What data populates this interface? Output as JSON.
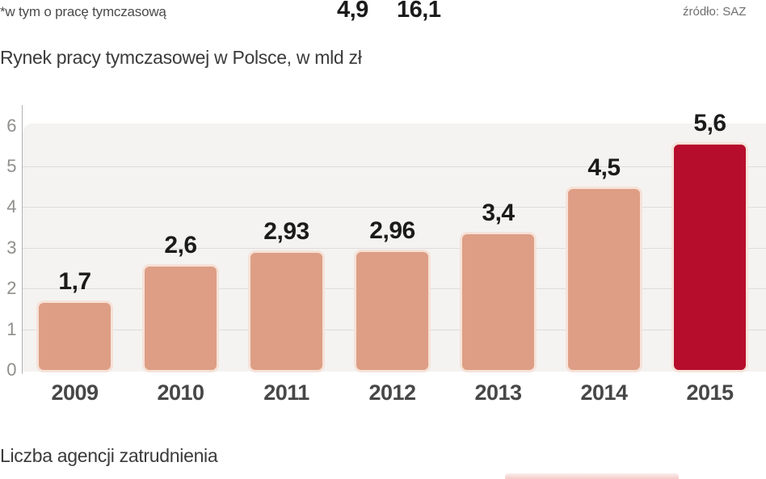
{
  "top": {
    "note": "*w tym o pracę tymczasową",
    "values": [
      "4,9",
      "16,1"
    ],
    "source": "źródło: SAZ"
  },
  "bottom_title": "Liczba agencji zatrudnienia",
  "colors": {
    "bar": "#dd9e85",
    "bar_highlight": "#b60d2d",
    "bar_border": "#f6e2d8",
    "plot_background": "#f4f3f1",
    "gridline": "#dedddb",
    "axis_text": "#8f8f8d",
    "label_text": "#1b1b1b"
  },
  "chart_data": {
    "type": "bar",
    "title": "Rynek pracy tymczasowej w Polsce, w mld zł",
    "categories": [
      "2009",
      "2010",
      "2011",
      "2012",
      "2013",
      "2014",
      "2015"
    ],
    "values": [
      1.7,
      2.6,
      2.93,
      2.96,
      3.4,
      4.5,
      5.6
    ],
    "value_labels": [
      "1,7",
      "2,6",
      "2,93",
      "2,96",
      "3,4",
      "4,5",
      "5,6"
    ],
    "highlight_index": 6,
    "xlabel": "",
    "ylabel": "",
    "ylim": [
      0,
      6
    ],
    "yticks": [
      0,
      1,
      2,
      3,
      4,
      5,
      6
    ],
    "grid": true,
    "legend": false,
    "bar_color": "#dd9e85",
    "highlight_color": "#b60d2d"
  }
}
